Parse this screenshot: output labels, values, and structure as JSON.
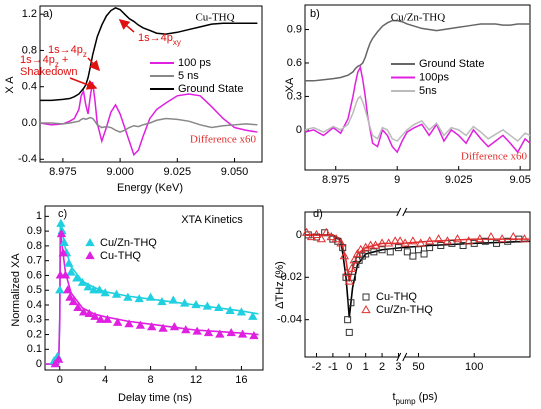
{
  "chart_data": [
    {
      "type": "line",
      "label": "a)",
      "title": "Cu-THQ",
      "xlabel": "Energy (KeV)",
      "ylabel": "X A",
      "xlim": [
        8.965,
        9.062
      ],
      "ylim": [
        -0.43,
        1.29
      ],
      "xticks": [
        8.975,
        {
          "value": 9,
          "label": "9.000"
        },
        9.025,
        {
          "value": 9.05,
          "label": "9.050"
        }
      ],
      "yticks": [
        -0.4,
        {
          "value": 0,
          "label": "0.0"
        },
        0.4,
        0.8,
        1.2
      ],
      "x": [
        8.965,
        8.97,
        8.975,
        8.978,
        8.98,
        8.982,
        8.983,
        8.984,
        8.985,
        8.986,
        8.987,
        8.988,
        8.989,
        8.99,
        8.992,
        8.994,
        8.996,
        8.998,
        9.0,
        9.002,
        9.004,
        9.006,
        9.008,
        9.01,
        9.013,
        9.016,
        9.02,
        9.025,
        9.03,
        9.035,
        9.04,
        9.045,
        9.05,
        9.055,
        9.06
      ],
      "series": [
        {
          "name": "100 ps",
          "color": "#e020e0",
          "values": [
            0.0,
            -0.02,
            -0.01,
            0.02,
            0.05,
            0.15,
            0.3,
            0.35,
            0.2,
            0.1,
            0.3,
            0.45,
            0.25,
            0.0,
            -0.2,
            -0.05,
            0.12,
            0.2,
            0.1,
            -0.05,
            -0.2,
            -0.35,
            -0.3,
            -0.15,
            0.05,
            0.15,
            0.22,
            0.3,
            0.32,
            0.3,
            0.18,
            0.05,
            -0.05,
            -0.08,
            -0.1
          ]
        },
        {
          "name": "5 ns",
          "color": "#888888",
          "values": [
            0,
            0,
            -0.01,
            0,
            0.01,
            0.02,
            0.04,
            0.05,
            0.04,
            0.05,
            0.06,
            0.05,
            0.02,
            -0.02,
            -0.05,
            -0.04,
            -0.05,
            -0.08,
            -0.1,
            -0.08,
            -0.05,
            -0.03,
            -0.04,
            -0.02,
            0.0,
            0.03,
            0.05,
            0.04,
            0.02,
            -0.02,
            -0.05,
            -0.03,
            -0.02,
            -0.01,
            -0.02
          ]
        },
        {
          "name": "Ground State",
          "color": "#000000",
          "values": [
            0.25,
            0.25,
            0.26,
            0.27,
            0.29,
            0.32,
            0.35,
            0.38,
            0.42,
            0.5,
            0.62,
            0.75,
            0.85,
            0.95,
            1.08,
            1.18,
            1.24,
            1.27,
            1.25,
            1.2,
            1.15,
            1.12,
            1.08,
            1.05,
            1.02,
            0.99,
            0.98,
            1.0,
            1.03,
            1.06,
            1.09,
            1.1,
            1.1,
            1.1,
            1.1
          ]
        }
      ],
      "annotations": [
        {
          "text": "1s→4p",
          "sub": "z"
        },
        {
          "text": "1s→4p",
          "sub": "xy"
        },
        {
          "text": "1s→4p",
          "sub": "z",
          "tail": " +",
          "line2": "Shakedown"
        }
      ],
      "note": "Difference  x60"
    },
    {
      "type": "line",
      "label": "b)",
      "title": "Cu/Zn-THQ",
      "ylabel": "XA",
      "xlim": [
        8.9625,
        9.054
      ],
      "ylim": [
        -0.36,
        1.12
      ],
      "xticks": [
        8.975,
        9,
        9.025,
        9.05
      ],
      "yticks": [
        0,
        0.3,
        0.6,
        0.9
      ],
      "x": [
        8.9625,
        8.966,
        8.97,
        8.974,
        8.977,
        8.98,
        8.982,
        8.983,
        8.984,
        8.985,
        8.986,
        8.987,
        8.988,
        8.989,
        8.99,
        8.992,
        8.994,
        8.996,
        8.998,
        9.0,
        9.002,
        9.004,
        9.007,
        9.01,
        9.013,
        9.016,
        9.019,
        9.022,
        9.025,
        9.028,
        9.031,
        9.034,
        9.037,
        9.04,
        9.043,
        9.046,
        9.049,
        9.052,
        9.054
      ],
      "series": [
        {
          "name": "Ground State",
          "color": "#666666",
          "values": [
            0.44,
            0.44,
            0.45,
            0.46,
            0.47,
            0.49,
            0.52,
            0.55,
            0.57,
            0.58,
            0.6,
            0.65,
            0.72,
            0.78,
            0.82,
            0.88,
            0.93,
            0.96,
            0.98,
            0.98,
            0.97,
            0.95,
            0.93,
            0.91,
            0.9,
            0.89,
            0.9,
            0.91,
            0.92,
            0.93,
            0.94,
            0.95,
            0.95,
            0.95,
            0.94,
            0.94,
            0.95,
            0.95,
            0.95
          ]
        },
        {
          "name": "100ps",
          "color": "#e020e0",
          "values": [
            -0.02,
            0.0,
            -0.05,
            0.02,
            -0.03,
            0.1,
            0.3,
            0.42,
            0.52,
            0.56,
            0.45,
            0.3,
            0.12,
            0.0,
            -0.12,
            -0.15,
            0.0,
            -0.05,
            -0.15,
            -0.2,
            -0.1,
            -0.02,
            0.02,
            0.05,
            -0.05,
            0.05,
            -0.1,
            0.0,
            -0.05,
            -0.12,
            0.0,
            -0.08,
            -0.15,
            -0.1,
            -0.05,
            -0.12,
            -0.2,
            -0.08,
            -0.12
          ]
        },
        {
          "name": "5ns",
          "color": "#bbbbbb",
          "values": [
            0.0,
            0.02,
            -0.02,
            0.03,
            0.0,
            0.05,
            0.15,
            0.22,
            0.28,
            0.3,
            0.25,
            0.18,
            0.1,
            0.02,
            -0.05,
            -0.08,
            0.02,
            0.0,
            -0.08,
            -0.1,
            -0.05,
            0.0,
            0.05,
            0.08,
            0.0,
            0.06,
            -0.05,
            0.02,
            0.0,
            -0.05,
            0.03,
            -0.02,
            -0.08,
            -0.04,
            0.0,
            -0.05,
            -0.1,
            -0.03,
            -0.05
          ]
        }
      ],
      "note": "Difference  x60"
    },
    {
      "type": "scatter",
      "label": "c)",
      "title": "XTA Kinetics",
      "xlabel": "Delay time (ns)",
      "ylabel": "Normalized XA",
      "xlim": [
        -1.3,
        17.9
      ],
      "ylim": [
        -0.04,
        1.07
      ],
      "xticks": [
        0,
        4,
        8,
        12,
        16
      ],
      "yticks": [
        0,
        0.1,
        0.2,
        0.3,
        0.4,
        0.5,
        0.6,
        0.7,
        0.8,
        0.9,
        1
      ],
      "series": [
        {
          "name": "Cu/Zn-THQ",
          "color": "#20d0e0",
          "marker": "triangle",
          "filled": true,
          "x": [
            -0.5,
            -0.2,
            0,
            0.1,
            0.2,
            0.4,
            0.6,
            0.8,
            1,
            1.5,
            2,
            2.5,
            3,
            3.5,
            4,
            5,
            6,
            7,
            8,
            9,
            10,
            11,
            12,
            13,
            14,
            15,
            16,
            17
          ],
          "values": [
            0.02,
            0.05,
            0.5,
            0.95,
            0.9,
            0.82,
            0.75,
            0.68,
            0.62,
            0.58,
            0.55,
            0.52,
            0.5,
            0.5,
            0.48,
            0.47,
            0.45,
            0.44,
            0.45,
            0.42,
            0.43,
            0.41,
            0.4,
            0.39,
            0.38,
            0.36,
            0.35,
            0.32
          ]
        },
        {
          "name": "Cu-THQ",
          "color": "#e020e0",
          "marker": "triangle",
          "filled": true,
          "x": [
            -0.4,
            -0.1,
            0.05,
            0.15,
            0.3,
            0.5,
            0.7,
            0.9,
            1.2,
            1.6,
            2.1,
            2.6,
            3.1,
            3.6,
            4.2,
            5.1,
            6.1,
            7.1,
            8.1,
            9.1,
            10.1,
            11.1,
            12.1,
            13.1,
            14.1,
            15.1,
            16.1,
            17.1
          ],
          "values": [
            0.0,
            0.03,
            0.6,
            0.88,
            0.75,
            0.6,
            0.5,
            0.45,
            0.42,
            0.38,
            0.35,
            0.34,
            0.32,
            0.3,
            0.3,
            0.28,
            0.27,
            0.26,
            0.25,
            0.24,
            0.25,
            0.23,
            0.22,
            0.21,
            0.2,
            0.21,
            0.2,
            0.19
          ]
        }
      ],
      "fits": [
        {
          "color": "#20d0e0",
          "x": [
            -1.3,
            -0.1,
            0,
            0.05,
            0.5,
            1,
            2,
            3,
            4,
            6,
            8,
            10,
            12,
            14,
            16,
            17.5
          ],
          "values": [
            0,
            0,
            0.3,
            0.95,
            0.78,
            0.66,
            0.56,
            0.52,
            0.49,
            0.46,
            0.44,
            0.42,
            0.4,
            0.38,
            0.36,
            0.34
          ]
        },
        {
          "color": "#e020e0",
          "x": [
            -1.3,
            -0.1,
            0,
            0.05,
            0.5,
            1,
            2,
            3,
            4,
            6,
            8,
            10,
            12,
            14,
            16,
            17.5
          ],
          "values": [
            0,
            0,
            0.3,
            0.9,
            0.62,
            0.48,
            0.38,
            0.34,
            0.32,
            0.29,
            0.27,
            0.25,
            0.23,
            0.22,
            0.21,
            0.2
          ]
        }
      ]
    },
    {
      "type": "scatter",
      "label": "d)",
      "xlabel": {
        "text": "t",
        "sub": "pump",
        "tail": " (ps)"
      },
      "ylabel": "ΔTHz (%)",
      "xlim": [
        -2.7,
        150
      ],
      "xbreak": [
        3.2,
        35
      ],
      "ylim": [
        -0.0576,
        0.0108
      ],
      "xticks": [
        -2,
        -1,
        0,
        1,
        2,
        3,
        50,
        100
      ],
      "yticks": [
        0,
        -0.02,
        -0.04
      ],
      "series": [
        {
          "name": "Cu-THQ",
          "color": "#333333",
          "marker": "square",
          "filled": false,
          "x": [
            -2.5,
            -2,
            -1.5,
            -1,
            -0.7,
            -0.4,
            -0.2,
            -0.1,
            0,
            0.1,
            0.2,
            0.4,
            0.6,
            0.8,
            1,
            1.5,
            2,
            2.5,
            3,
            40,
            45,
            50,
            55,
            60,
            70,
            80,
            90,
            100,
            110,
            120,
            130,
            140
          ],
          "values": [
            0,
            -0.001,
            0.001,
            -0.002,
            -0.003,
            -0.006,
            -0.02,
            -0.04,
            -0.046,
            -0.032,
            -0.02,
            -0.014,
            -0.012,
            -0.01,
            -0.009,
            -0.008,
            -0.007,
            -0.008,
            -0.006,
            -0.008,
            -0.01,
            -0.007,
            -0.009,
            -0.006,
            -0.005,
            -0.004,
            -0.005,
            -0.004,
            -0.003,
            -0.004,
            -0.003,
            -0.002
          ]
        },
        {
          "name": "Cu/Zn-THQ",
          "color": "#e03030",
          "marker": "triangle",
          "filled": false,
          "x": [
            -2.6,
            -2.3,
            -2,
            -1.7,
            -1.4,
            -1.1,
            -0.8,
            -0.5,
            -0.3,
            -0.15,
            0,
            0.15,
            0.3,
            0.5,
            0.7,
            1,
            1.3,
            1.6,
            2,
            2.4,
            2.8,
            3.1,
            38,
            45,
            52,
            60,
            68,
            76,
            85,
            95,
            105,
            115,
            125,
            135,
            145
          ],
          "values": [
            0.001,
            -0.001,
            0,
            -0.002,
            0.001,
            -0.001,
            -0.002,
            -0.004,
            -0.01,
            -0.018,
            -0.022,
            -0.016,
            -0.012,
            -0.009,
            -0.007,
            -0.006,
            -0.005,
            -0.005,
            -0.004,
            -0.004,
            -0.003,
            -0.003,
            -0.004,
            -0.003,
            -0.004,
            -0.003,
            -0.002,
            -0.003,
            -0.002,
            -0.003,
            -0.002,
            -0.001,
            -0.002,
            -0.001,
            -0.002
          ]
        }
      ],
      "fits": [
        {
          "color": "#000000",
          "x": [
            -2.7,
            -1,
            -0.5,
            -0.2,
            0,
            0.2,
            0.5,
            1,
            2,
            3.2,
            35,
            60,
            100,
            150
          ],
          "values": [
            0,
            0,
            -0.003,
            -0.02,
            -0.039,
            -0.025,
            -0.014,
            -0.009,
            -0.007,
            -0.006,
            -0.006,
            -0.005,
            -0.004,
            -0.003
          ]
        },
        {
          "color": "#e03030",
          "x": [
            -2.7,
            -1,
            -0.5,
            -0.2,
            0,
            0.2,
            0.5,
            1,
            2,
            3.2,
            35,
            60,
            100,
            150
          ],
          "values": [
            0,
            0,
            -0.002,
            -0.012,
            -0.022,
            -0.016,
            -0.009,
            -0.006,
            -0.004,
            -0.004,
            -0.004,
            -0.003,
            -0.002,
            -0.002
          ]
        }
      ]
    }
  ]
}
